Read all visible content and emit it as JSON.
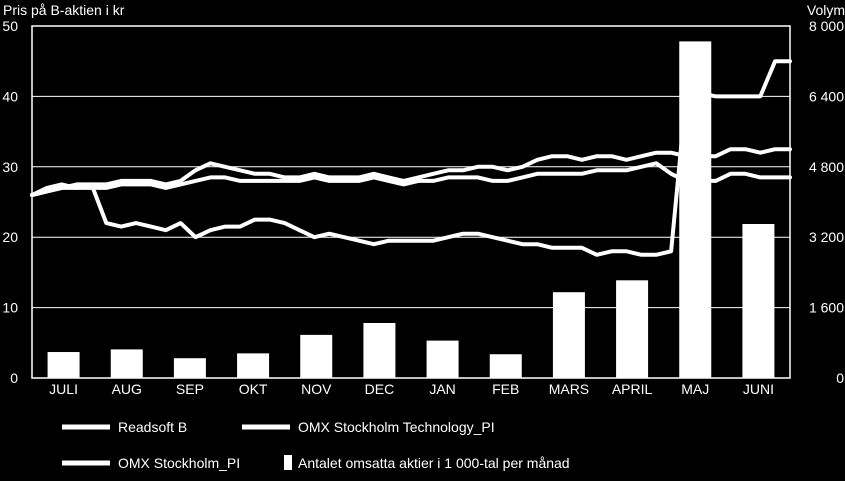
{
  "chart_data": {
    "type": "bar",
    "title": "",
    "left_axis_label": "Pris på B-aktien i kr",
    "right_axis_label": "Volym",
    "left_ylim": [
      0,
      50
    ],
    "left_ticks": [
      "0",
      "10",
      "20",
      "30",
      "40",
      "50"
    ],
    "left_tick_values": [
      0,
      10,
      20,
      30,
      40,
      50
    ],
    "right_ylim": [
      0,
      8000
    ],
    "right_ticks": [
      "0",
      "1 600",
      "3 200",
      "4 800",
      "6 400",
      "8 000"
    ],
    "right_tick_values": [
      0,
      1600,
      3200,
      4800,
      6400,
      8000
    ],
    "categories": [
      "JULI",
      "AUG",
      "SEP",
      "OKT",
      "NOV",
      "DEC",
      "JAN",
      "FEB",
      "MARS",
      "APRIL",
      "MAJ",
      "JUNI"
    ],
    "grid": "horizontal",
    "legend_placement": "bottom",
    "volume_series": {
      "name": "Antalet omsatta aktier i 1 000-tal per månad",
      "values": [
        590,
        650,
        450,
        560,
        980,
        1250,
        850,
        540,
        1950,
        2220,
        7650,
        3500
      ]
    },
    "line_series": [
      {
        "name": "Readsoft B",
        "values": [
          26,
          27,
          27.5,
          27,
          27.5,
          22,
          21.5,
          22,
          21.5,
          21,
          22,
          20,
          21,
          21.5,
          21.5,
          22.5,
          22.5,
          22,
          21,
          20,
          20.5,
          20,
          19.5,
          19,
          19.5,
          19.5,
          19.5,
          19.5,
          20,
          20.5,
          20.5,
          20,
          19.5,
          19,
          19,
          18.5,
          18.5,
          18.5,
          17.5,
          18,
          18,
          17.5,
          17.5,
          18,
          40,
          40.5,
          40,
          40,
          40,
          40,
          45,
          45
        ]
      },
      {
        "name": "OMX Stockholm Technology_PI",
        "values": [
          26,
          26.5,
          27,
          27.5,
          27.5,
          27.5,
          28,
          28,
          28,
          27.5,
          28,
          29.5,
          30.5,
          30,
          29.5,
          29,
          29,
          28.5,
          28.5,
          29,
          28.5,
          28.5,
          28.5,
          29,
          28.5,
          28,
          28.5,
          29,
          29.5,
          29.5,
          30,
          30,
          29.5,
          30,
          31,
          31.5,
          31.5,
          31,
          31.5,
          31.5,
          31,
          31.5,
          32,
          32,
          31.5,
          31.5,
          31.5,
          32.5,
          32.5,
          32,
          32.5,
          32.5
        ]
      },
      {
        "name": "OMX Stockholm_PI",
        "values": [
          26,
          26.5,
          27,
          27,
          27,
          27,
          27.5,
          27.5,
          27.5,
          27,
          27.5,
          28,
          28.5,
          28.5,
          28,
          28,
          28,
          28,
          28,
          28.5,
          28,
          28,
          28,
          28.5,
          28,
          27.5,
          28,
          28,
          28.5,
          28.5,
          28.5,
          28,
          28,
          28.5,
          29,
          29,
          29,
          29,
          29.5,
          29.5,
          29.5,
          30,
          30.5,
          29,
          28,
          28,
          28,
          29,
          29,
          28.5,
          28.5,
          28.5
        ]
      }
    ]
  }
}
